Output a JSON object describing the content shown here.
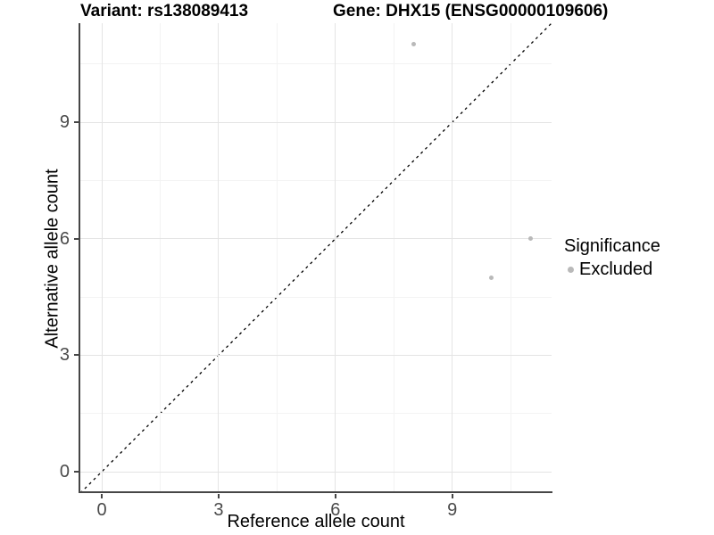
{
  "title": {
    "variant": "Variant: rs138089413",
    "gene": "Gene: DHX15 (ENSG00000109606)"
  },
  "axes": {
    "xlabel": "Reference allele count",
    "ylabel": "Alternative allele count"
  },
  "legend": {
    "title": "Significance",
    "items": [
      {
        "label": "Excluded",
        "color": "#b9b9b9"
      }
    ]
  },
  "chart_data": {
    "type": "scatter",
    "title": "Variant: rs138089413 | Gene: DHX15 (ENSG00000109606)",
    "xlabel": "Reference allele count",
    "ylabel": "Alternative allele count",
    "x_ticks": [
      0,
      3,
      6,
      9
    ],
    "y_ticks": [
      0,
      3,
      6,
      9
    ],
    "x_minor_ticks": [
      1.5,
      4.5,
      7.5,
      10.5
    ],
    "y_minor_ticks": [
      1.5,
      4.5,
      7.5,
      10.5
    ],
    "xlim": [
      -0.55,
      11.55
    ],
    "ylim": [
      -0.55,
      11.55
    ],
    "grid": "major and minor gridlines on",
    "legend_position": "right",
    "series": [
      {
        "name": "Excluded",
        "color": "#b9b9b9",
        "points": [
          {
            "x": 8,
            "y": 11
          },
          {
            "x": 10,
            "y": 5
          },
          {
            "x": 11,
            "y": 6
          }
        ]
      }
    ],
    "reference_line": {
      "type": "identity y=x",
      "style": "dashed",
      "color": "#000000"
    }
  },
  "colors": {
    "point": "#b9b9b9",
    "axis_line": "#464646",
    "tick_text": "#4a4a4a",
    "grid_major": "#e4e4e4",
    "grid_minor": "#f3f3f3",
    "background": "#ffffff"
  }
}
